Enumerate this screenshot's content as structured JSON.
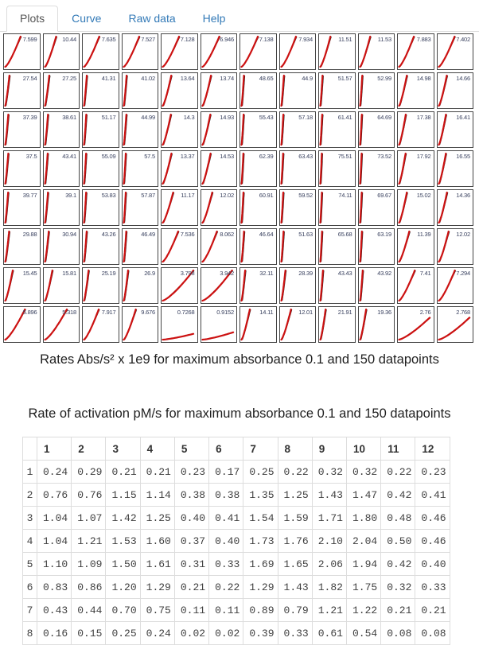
{
  "tabs": [
    {
      "label": "Plots",
      "active": true
    },
    {
      "label": "Curve",
      "active": false
    },
    {
      "label": "Raw data",
      "active": false
    },
    {
      "label": "Help",
      "active": false
    }
  ],
  "plots": {
    "caption": "Rates Abs/s² x 1e9 for maximum absorbance 0.1 and 150 datapoints",
    "rows": 8,
    "cols": 12,
    "values": [
      [
        "7.599",
        "10.44",
        "7.635",
        "7.527",
        "7.128",
        "6.946",
        "7.138",
        "7.934",
        "11.51",
        "11.53",
        "7.883",
        "7.402"
      ],
      [
        "27.54",
        "27.25",
        "41.31",
        "41.02",
        "13.64",
        "13.74",
        "48.65",
        "44.9",
        "51.57",
        "52.99",
        "14.98",
        "14.66"
      ],
      [
        "37.39",
        "38.61",
        "51.17",
        "44.99",
        "14.3",
        "14.93",
        "55.43",
        "57.18",
        "61.41",
        "64.69",
        "17.38",
        "16.41"
      ],
      [
        "37.5",
        "43.41",
        "55.09",
        "57.5",
        "13.37",
        "14.53",
        "62.39",
        "63.43",
        "75.51",
        "73.52",
        "17.92",
        "16.55"
      ],
      [
        "39.77",
        "39.1",
        "53.83",
        "57.87",
        "11.17",
        "12.02",
        "60.91",
        "59.52",
        "74.11",
        "69.67",
        "15.02",
        "14.36"
      ],
      [
        "29.88",
        "30.94",
        "43.26",
        "46.49",
        "7.536",
        "8.062",
        "46.64",
        "51.63",
        "65.68",
        "63.19",
        "11.39",
        "12.02"
      ],
      [
        "15.45",
        "15.81",
        "25.19",
        "26.9",
        "3.798",
        "3.942",
        "32.11",
        "28.39",
        "43.43",
        "43.92",
        "7.41",
        "7.294"
      ],
      [
        "5.896",
        "5.318",
        "7.917",
        "9.676",
        "0.7268",
        "0.9152",
        "14.11",
        "12.01",
        "21.91",
        "19.36",
        "2.76",
        "2.768"
      ]
    ]
  },
  "table": {
    "caption": "Rate of activation pM/s for maximum absorbance 0.1 and 150 datapoints",
    "col_headers": [
      "1",
      "2",
      "3",
      "4",
      "5",
      "6",
      "7",
      "8",
      "9",
      "10",
      "11",
      "12"
    ],
    "rows": [
      {
        "label": "1",
        "values": [
          "0.24",
          "0.29",
          "0.21",
          "0.21",
          "0.23",
          "0.17",
          "0.25",
          "0.22",
          "0.32",
          "0.32",
          "0.22",
          "0.23"
        ]
      },
      {
        "label": "2",
        "values": [
          "0.76",
          "0.76",
          "1.15",
          "1.14",
          "0.38",
          "0.38",
          "1.35",
          "1.25",
          "1.43",
          "1.47",
          "0.42",
          "0.41"
        ]
      },
      {
        "label": "3",
        "values": [
          "1.04",
          "1.07",
          "1.42",
          "1.25",
          "0.40",
          "0.41",
          "1.54",
          "1.59",
          "1.71",
          "1.80",
          "0.48",
          "0.46"
        ]
      },
      {
        "label": "4",
        "values": [
          "1.04",
          "1.21",
          "1.53",
          "1.60",
          "0.37",
          "0.40",
          "1.73",
          "1.76",
          "2.10",
          "2.04",
          "0.50",
          "0.46"
        ]
      },
      {
        "label": "5",
        "values": [
          "1.10",
          "1.09",
          "1.50",
          "1.61",
          "0.31",
          "0.33",
          "1.69",
          "1.65",
          "2.06",
          "1.94",
          "0.42",
          "0.40"
        ]
      },
      {
        "label": "6",
        "values": [
          "0.83",
          "0.86",
          "1.20",
          "1.29",
          "0.21",
          "0.22",
          "1.29",
          "1.43",
          "1.82",
          "1.75",
          "0.32",
          "0.33"
        ]
      },
      {
        "label": "7",
        "values": [
          "0.43",
          "0.44",
          "0.70",
          "0.75",
          "0.11",
          "0.11",
          "0.89",
          "0.79",
          "1.21",
          "1.22",
          "0.21",
          "0.21"
        ]
      },
      {
        "label": "8",
        "values": [
          "0.16",
          "0.15",
          "0.25",
          "0.24",
          "0.02",
          "0.02",
          "0.39",
          "0.33",
          "0.61",
          "0.54",
          "0.08",
          "0.08"
        ]
      }
    ]
  },
  "colors": {
    "tab_link": "#337ab7",
    "active_tab_text": "#555555",
    "plot_curve_red": "#cc1111",
    "plot_fit_black": "#1a1a1a",
    "plot_border": "#454545",
    "table_border": "#dddddd",
    "plot_label_text": "#39415f"
  }
}
